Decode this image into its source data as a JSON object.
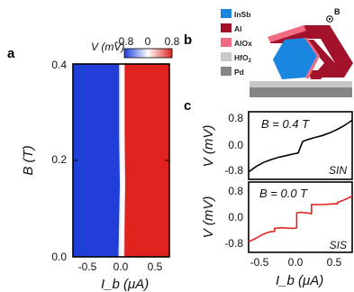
{
  "panels": {
    "a": "a",
    "b": "b",
    "c": "c"
  },
  "colors": {
    "negative": "#1f3fd8",
    "zero": "#ffffff",
    "positive": "#e0231f",
    "trace_top": "#000000",
    "trace_bottom": "#e0231f",
    "insb": "#1a86e0",
    "al": "#a3122b",
    "alox": "#f06a82",
    "hfo2": "#c8c8c8",
    "pd": "#868686"
  },
  "panel_b": {
    "legend": [
      {
        "label": "InSb",
        "color_key": "insb"
      },
      {
        "label": "Al",
        "color_key": "al"
      },
      {
        "label": "AlOx",
        "color_key": "alox"
      },
      {
        "label": "HfO",
        "sub": "2",
        "color_key": "hfo2"
      },
      {
        "label": "Pd",
        "color_key": "pd"
      }
    ],
    "field_symbol": "B",
    "field_icon": "out-of-plane-dot-icon"
  },
  "chart_data": [
    {
      "type": "heatmap",
      "panel": "a",
      "colorbar": {
        "label": "V (mV)",
        "ticks": [
          "-0.8",
          "0",
          "0.8"
        ],
        "range": [
          -0.8,
          0.8
        ]
      },
      "x_ticks": [
        "-0.5",
        "0.0",
        "0.5"
      ],
      "y_ticks": [
        "0.0",
        "0.2",
        "0.4"
      ],
      "xlabel": "I_b (μA)",
      "ylabel": "B (T)",
      "xlim": [
        -0.7,
        0.7
      ],
      "ylim": [
        0.0,
        0.4
      ],
      "description_values": {
        "zero_crossing_I": [
          [
            0.0,
            0.0
          ],
          [
            0.02,
            0.15
          ],
          [
            0.01,
            0.25
          ],
          [
            0.01,
            0.4
          ]
        ]
      }
    },
    {
      "type": "line",
      "panel": "c-top",
      "annotation": "B = 0.4 T",
      "label": "SIN",
      "y_ticks": [
        "0.8",
        "0.0",
        "-0.8"
      ],
      "ylabel": "V (mV)",
      "xlim": [
        -0.7,
        0.7
      ],
      "ylim": [
        -1.0,
        1.0
      ],
      "x": [
        -0.7,
        -0.6,
        -0.5,
        -0.4,
        -0.3,
        -0.2,
        -0.1,
        -0.03,
        0.0,
        0.03,
        0.1,
        0.2,
        0.3,
        0.4,
        0.5,
        0.6,
        0.7
      ],
      "y": [
        -0.78,
        -0.62,
        -0.5,
        -0.42,
        -0.35,
        -0.3,
        -0.25,
        -0.22,
        -0.05,
        0.12,
        0.18,
        0.24,
        0.3,
        0.38,
        0.48,
        0.6,
        0.75
      ]
    },
    {
      "type": "line",
      "panel": "c-bottom",
      "annotation": "B = 0.0 T",
      "label": "SIS",
      "y_ticks": [
        "0.8",
        "0.0",
        "-0.8"
      ],
      "x_ticks": [
        "-0.5",
        "0.0",
        "0.5"
      ],
      "ylabel": "V (mV)",
      "xlabel": "I_b (μA)",
      "xlim": [
        -0.7,
        0.7
      ],
      "ylim": [
        -1.0,
        1.0
      ],
      "x": [
        -0.7,
        -0.6,
        -0.5,
        -0.42,
        -0.35,
        -0.35,
        -0.25,
        -0.1,
        -0.05,
        -0.05,
        0.0,
        0.1,
        0.15,
        0.15,
        0.3,
        0.45,
        0.5,
        0.5,
        0.6,
        0.7
      ],
      "y": [
        -0.7,
        -0.6,
        -0.48,
        -0.42,
        -0.4,
        -0.32,
        -0.3,
        -0.32,
        -0.3,
        0.12,
        0.14,
        0.12,
        0.1,
        0.36,
        0.36,
        0.38,
        0.38,
        0.42,
        0.5,
        0.6
      ]
    }
  ]
}
